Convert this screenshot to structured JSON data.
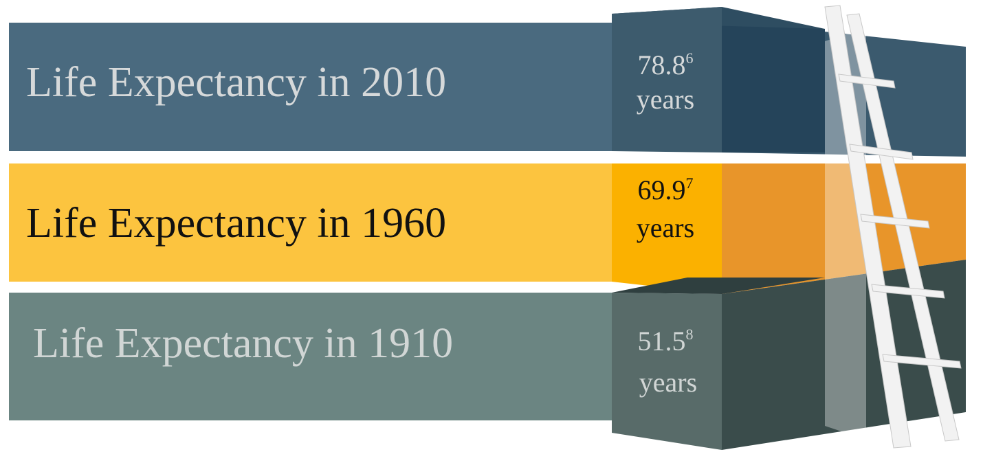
{
  "rows": [
    {
      "label": "Life Expectancy in 2010",
      "value": "78.8",
      "note": "6",
      "unit": "years"
    },
    {
      "label": "Life Expectancy in 1960",
      "value": "69.9",
      "note": "7",
      "unit": "years"
    },
    {
      "label": "Life Expectancy in 1910",
      "value": "51.5",
      "note": "8",
      "unit": "years"
    }
  ]
}
